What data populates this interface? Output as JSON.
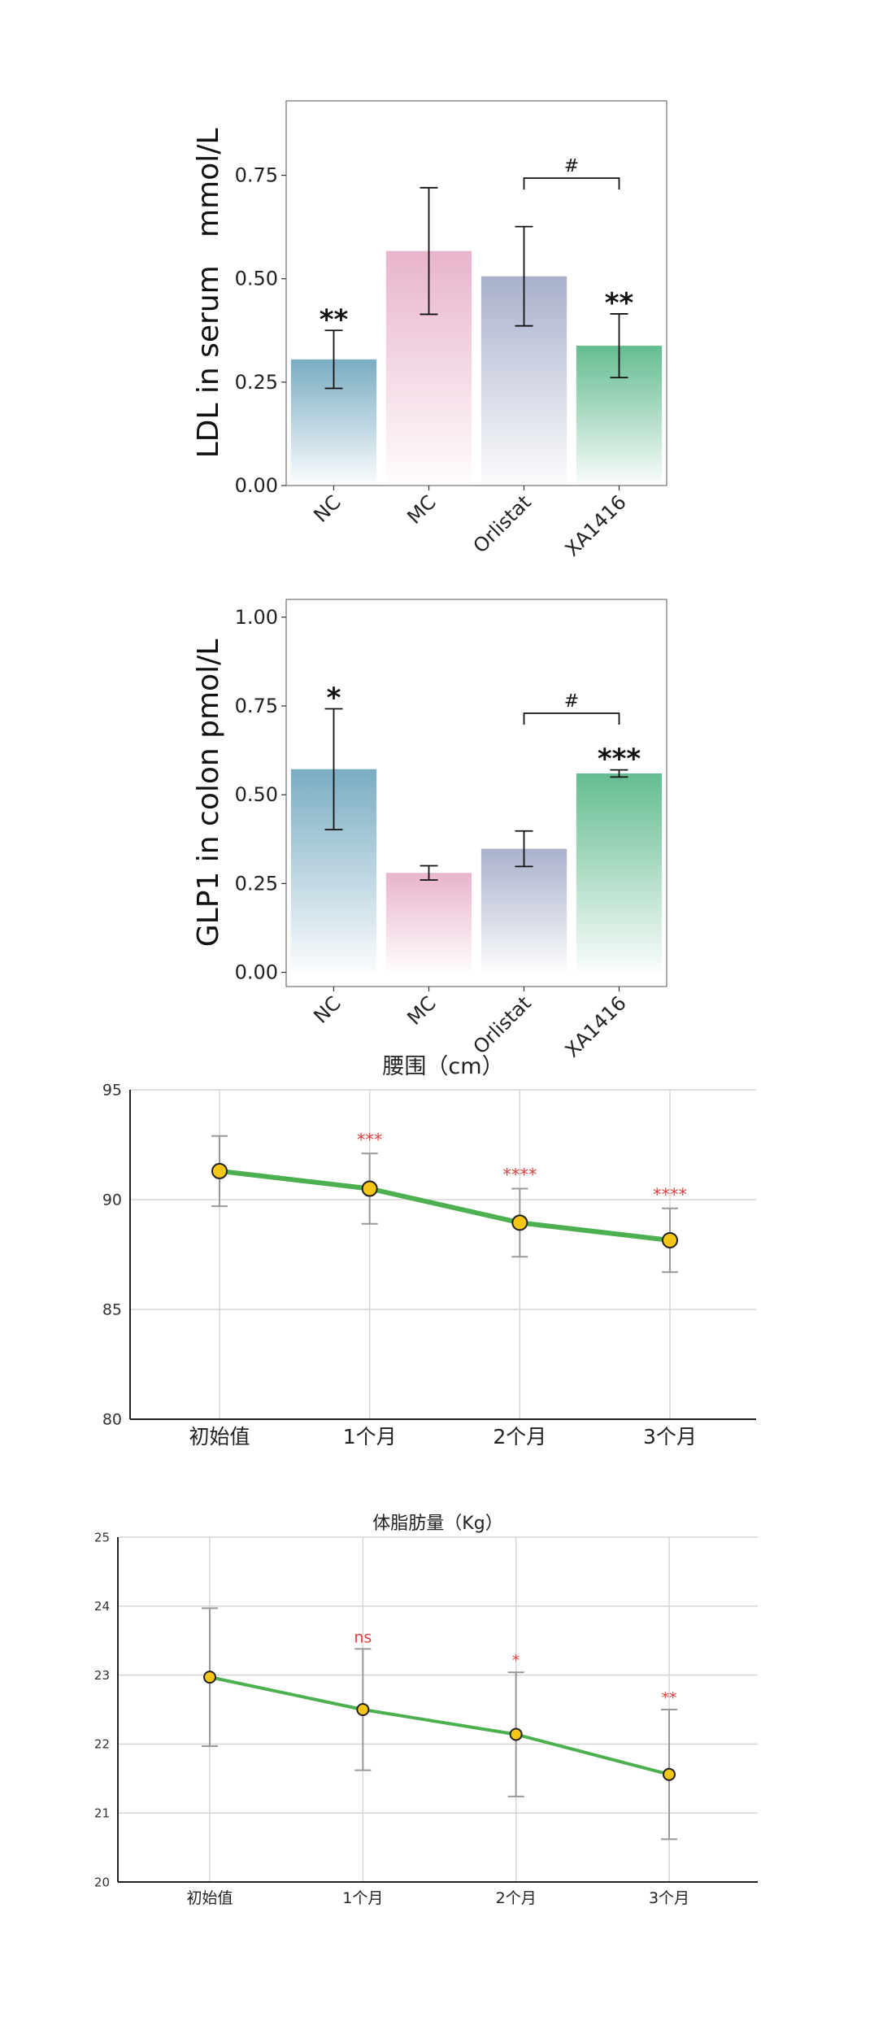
{
  "chart_data": [
    {
      "id": "ldl",
      "type": "bar",
      "ylabel": "LDL in serum   mmol/L",
      "categories": [
        "NC",
        "MC",
        "Orlistat",
        "XA1416"
      ],
      "values": [
        0.305,
        0.567,
        0.506,
        0.338
      ],
      "errors": [
        0.07,
        0.153,
        0.12,
        0.077
      ],
      "significance": [
        "**",
        "",
        "",
        "**"
      ],
      "comparison": {
        "from": 2,
        "to": 3,
        "label": "#"
      },
      "ylim": [
        0,
        0.93
      ],
      "yticks": [
        0.0,
        0.25,
        0.5,
        0.75
      ],
      "yticklabels": [
        "0.00",
        "0.25",
        "0.50",
        "0.75"
      ],
      "colors": [
        "#7aadc3",
        "#e8b4cc",
        "#a9b1cc",
        "#64bc90"
      ]
    },
    {
      "id": "glp1",
      "type": "bar",
      "ylabel": "GLP1 in colon pmol/L",
      "categories": [
        "NC",
        "MC",
        "Orlistat",
        "XA1416"
      ],
      "values": [
        0.572,
        0.28,
        0.348,
        0.56
      ],
      "errors": [
        0.17,
        0.02,
        0.05,
        0.01
      ],
      "significance": [
        "*",
        "",
        "",
        "***"
      ],
      "comparison": {
        "from": 2,
        "to": 3,
        "label": "#"
      },
      "ylim": [
        -0.04,
        1.05
      ],
      "yticks": [
        0.0,
        0.25,
        0.5,
        0.75,
        1.0
      ],
      "yticklabels": [
        "0.00",
        "0.25",
        "0.50",
        "0.75",
        "1.00"
      ],
      "colors": [
        "#7aadc3",
        "#e8b4cc",
        "#a9b1cc",
        "#64bc90"
      ]
    },
    {
      "id": "waist",
      "type": "line",
      "title": "腰围（cm）",
      "x": [
        "初始值",
        "1个月",
        "2个月",
        "3个月"
      ],
      "values": [
        91.3,
        90.5,
        88.95,
        88.15
      ],
      "errors": [
        1.6,
        1.6,
        1.55,
        1.45
      ],
      "significance": [
        "",
        "***",
        "****",
        "****"
      ],
      "ylim": [
        80,
        95
      ],
      "yticks": [
        80,
        85,
        90,
        95
      ],
      "grid": true,
      "line_color": "#4caf50",
      "marker_color": "#f5c518"
    },
    {
      "id": "fat",
      "type": "line",
      "title": "体脂肪量（Kg）",
      "x": [
        "初始值",
        "1个月",
        "2个月",
        "3个月"
      ],
      "values": [
        22.97,
        22.5,
        22.14,
        21.56
      ],
      "errors": [
        1.0,
        0.88,
        0.9,
        0.94
      ],
      "significance": [
        "",
        "ns",
        "*",
        "**"
      ],
      "ylim": [
        20,
        25
      ],
      "yticks": [
        20,
        21,
        22,
        23,
        24,
        25
      ],
      "grid": true,
      "line_color": "#4caf50",
      "marker_color": "#f5c518"
    }
  ]
}
